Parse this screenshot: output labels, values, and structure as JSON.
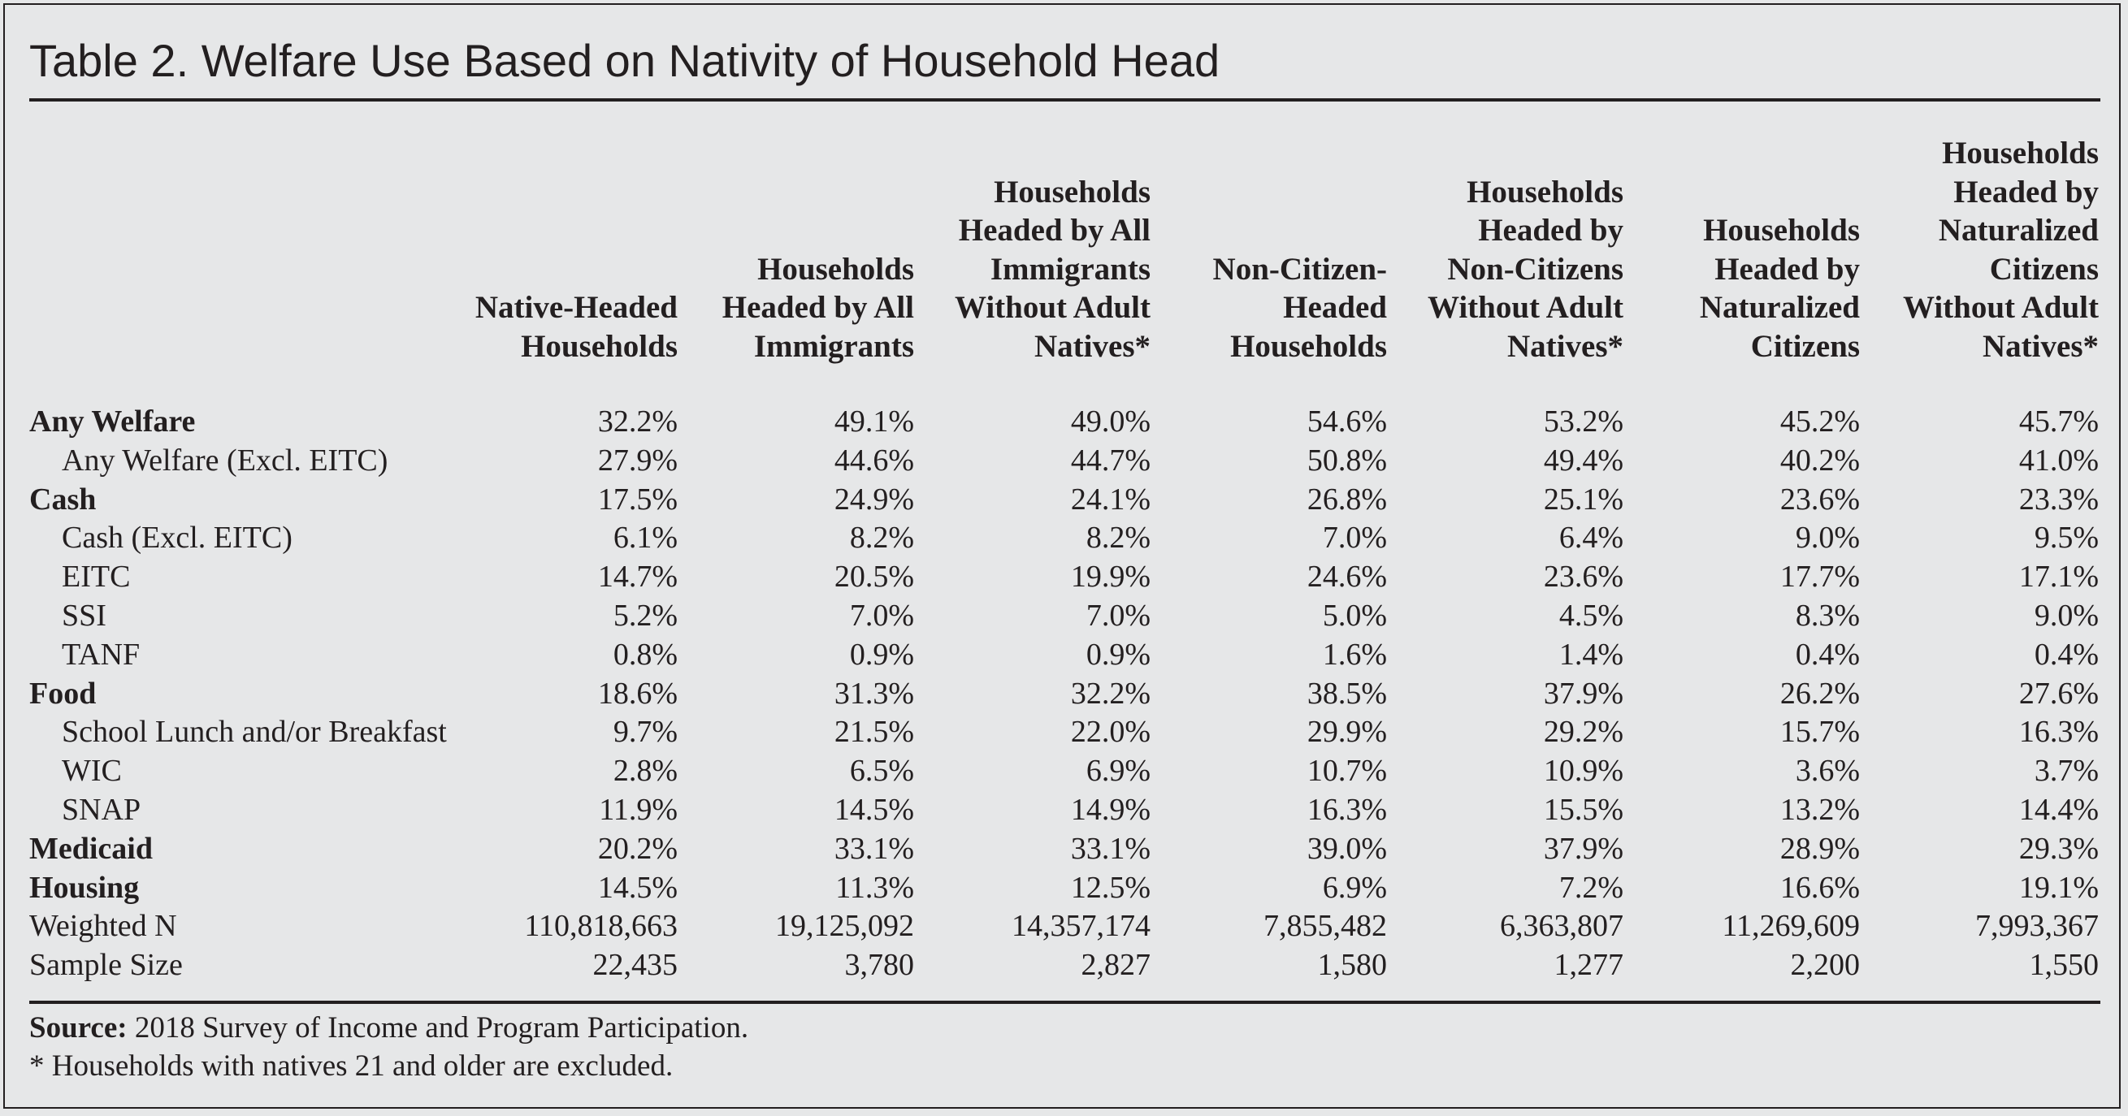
{
  "title": "Table 2. Welfare Use Based on Nativity of Household Head",
  "columns": [
    [
      "Native-Headed",
      "Households"
    ],
    [
      "Households",
      "Headed by All",
      "Immigrants"
    ],
    [
      "Households",
      "Headed by All",
      "Immigrants",
      "Without Adult",
      "Natives*"
    ],
    [
      "Non-Citizen-",
      "Headed",
      "Households"
    ],
    [
      "Households",
      "Headed by",
      "Non-Citizens",
      "Without Adult",
      "Natives*"
    ],
    [
      "Households",
      "Headed by",
      "Naturalized",
      "Citizens"
    ],
    [
      "Households",
      "Headed by",
      "Naturalized",
      "Citizens",
      "Without Adult",
      "Natives*"
    ]
  ],
  "rows": [
    {
      "label": "Any Welfare",
      "type": "major",
      "values": [
        "32.2%",
        "49.1%",
        "49.0%",
        "54.6%",
        "53.2%",
        "45.2%",
        "45.7%"
      ]
    },
    {
      "label": "Any Welfare (Excl.  EITC)",
      "type": "indent",
      "values": [
        "27.9%",
        "44.6%",
        "44.7%",
        "50.8%",
        "49.4%",
        "40.2%",
        "41.0%"
      ]
    },
    {
      "label": "Cash",
      "type": "major",
      "values": [
        "17.5%",
        "24.9%",
        "24.1%",
        "26.8%",
        "25.1%",
        "23.6%",
        "23.3%"
      ]
    },
    {
      "label": "Cash (Excl. EITC)",
      "type": "indent",
      "values": [
        "6.1%",
        "8.2%",
        "8.2%",
        "7.0%",
        "6.4%",
        "9.0%",
        "9.5%"
      ]
    },
    {
      "label": "EITC",
      "type": "indent",
      "values": [
        "14.7%",
        "20.5%",
        "19.9%",
        "24.6%",
        "23.6%",
        "17.7%",
        "17.1%"
      ]
    },
    {
      "label": "SSI",
      "type": "indent",
      "values": [
        "5.2%",
        "7.0%",
        "7.0%",
        "5.0%",
        "4.5%",
        "8.3%",
        "9.0%"
      ]
    },
    {
      "label": "TANF",
      "type": "indent",
      "values": [
        "0.8%",
        "0.9%",
        "0.9%",
        "1.6%",
        "1.4%",
        "0.4%",
        "0.4%"
      ]
    },
    {
      "label": "Food",
      "type": "major",
      "values": [
        "18.6%",
        "31.3%",
        "32.2%",
        "38.5%",
        "37.9%",
        "26.2%",
        "27.6%"
      ]
    },
    {
      "label": "School Lunch and/or Breakfast",
      "type": "indent",
      "values": [
        "9.7%",
        "21.5%",
        "22.0%",
        "29.9%",
        "29.2%",
        "15.7%",
        "16.3%"
      ]
    },
    {
      "label": "WIC",
      "type": "indent",
      "values": [
        "2.8%",
        "6.5%",
        "6.9%",
        "10.7%",
        "10.9%",
        "3.6%",
        "3.7%"
      ]
    },
    {
      "label": "SNAP",
      "type": "indent",
      "values": [
        "11.9%",
        "14.5%",
        "14.9%",
        "16.3%",
        "15.5%",
        "13.2%",
        "14.4%"
      ]
    },
    {
      "label": "Medicaid",
      "type": "major",
      "values": [
        "20.2%",
        "33.1%",
        "33.1%",
        "39.0%",
        "37.9%",
        "28.9%",
        "29.3%"
      ]
    },
    {
      "label": "Housing",
      "type": "major",
      "values": [
        "14.5%",
        "11.3%",
        "12.5%",
        "6.9%",
        "7.2%",
        "16.6%",
        "19.1%"
      ]
    },
    {
      "label": "Weighted N",
      "type": "plain",
      "values": [
        "110,818,663",
        "19,125,092",
        "14,357,174",
        "7,855,482",
        "6,363,807",
        "11,269,609",
        "7,993,367"
      ]
    },
    {
      "label": "Sample Size",
      "type": "plain",
      "values": [
        "22,435",
        "3,780",
        "2,827",
        "1,580",
        "1,277",
        "2,200",
        "1,550"
      ]
    }
  ],
  "source": {
    "label": "Source:",
    "text": " 2018 Survey of Income and Program Participation.",
    "note": "* Households with natives 21 and older are excluded."
  }
}
